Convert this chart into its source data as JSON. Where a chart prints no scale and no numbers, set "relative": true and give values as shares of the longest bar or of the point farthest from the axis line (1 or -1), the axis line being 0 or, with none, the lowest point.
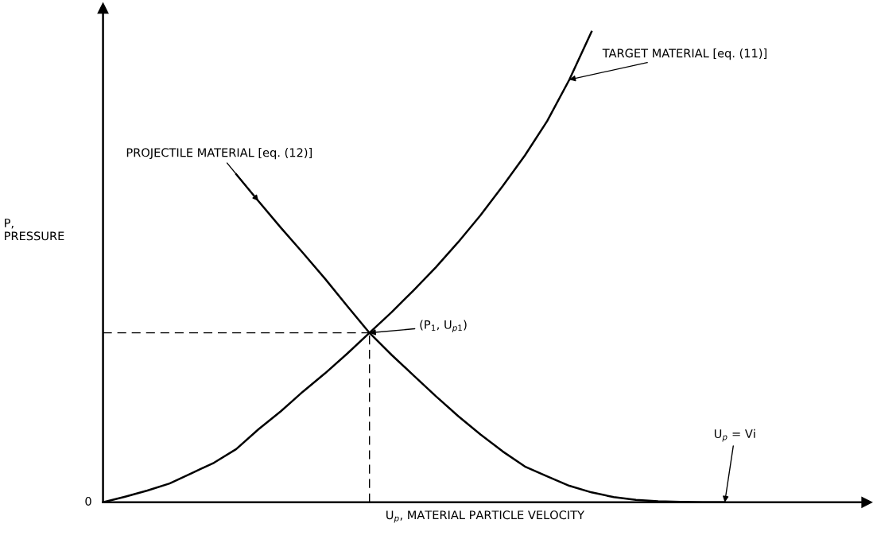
{
  "chart_data": {
    "type": "line",
    "relative": true,
    "xlabel": "U$_{p}$, MATERIAL PARTICLE VELOCITY",
    "ylabel": "P,\nPRESSURE",
    "categories": [
      null,
      null,
      null,
      null,
      null,
      null,
      null,
      null,
      null,
      null,
      null,
      null,
      null,
      null,
      null,
      null,
      null,
      null,
      null,
      null,
      null,
      null,
      null,
      null,
      null,
      null,
      null,
      null,
      null,
      null,
      null,
      null,
      null,
      null,
      null
    ],
    "series": [
      {
        "name": "TARGET MATERIAL [eq. (11)]",
        "color": "#000000",
        "values": [
          0,
          0.012,
          0.025,
          0.04,
          0.062,
          0.084,
          0.113,
          0.155,
          0.193,
          0.235,
          0.274,
          0.316,
          0.36,
          0.404,
          0.451,
          0.5,
          0.553,
          0.61,
          0.672,
          0.737,
          0.81,
          0.898,
          1.0,
          null,
          null,
          null,
          null,
          null,
          null,
          null,
          null,
          null,
          null,
          null,
          null
        ]
      },
      {
        "name": "PROJECTILE MATERIAL [eq. (12)]",
        "color": "#000000",
        "values": [
          null,
          null,
          null,
          null,
          null,
          null,
          0.697,
          0.64,
          0.584,
          0.53,
          0.475,
          0.417,
          0.36,
          0.313,
          0.269,
          0.225,
          0.183,
          0.144,
          0.108,
          0.076,
          0.055,
          0.035,
          0.021,
          0.011,
          0.005,
          0.002,
          0.001,
          0,
          0,
          null,
          null,
          null,
          null,
          null,
          null
        ]
      },
      {
        "color": "#000000",
        "line_style": "dashed",
        "values": [
          0.36,
          0.36,
          0.36,
          0.36,
          0.36,
          0.36,
          0.36,
          0.36,
          0.36,
          0.36,
          0.36,
          0.36,
          0.36,
          null,
          null,
          null,
          null,
          null,
          null,
          null,
          null,
          null,
          null,
          null,
          null,
          null,
          null,
          null,
          null,
          null,
          null,
          null,
          null,
          null,
          null
        ]
      }
    ],
    "annotations": [
      "(P$_{1}$, U$_{p1}$)",
      "U$_{p}$ = Vi",
      "0"
    ]
  }
}
